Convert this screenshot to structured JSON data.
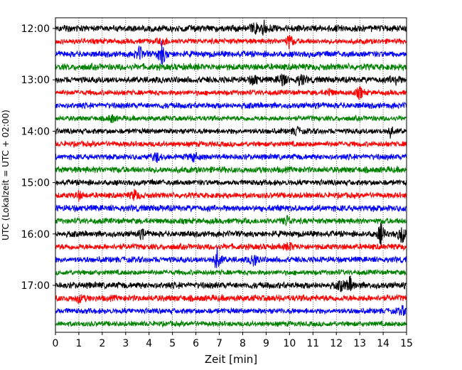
{
  "chart_data": {
    "type": "line",
    "xlabel": "Zeit  [min]",
    "ylabel": "UTC (Lokalzeit = UTC + 02:00)",
    "x_ticks": [
      "0",
      "1",
      "2",
      "3",
      "4",
      "5",
      "6",
      "7",
      "8",
      "9",
      "10",
      "11",
      "12",
      "13",
      "14",
      "15"
    ],
    "xlim": [
      0,
      15
    ],
    "y_ticks": [
      "12:00",
      "13:00",
      "14:00",
      "15:00",
      "16:00",
      "17:00"
    ],
    "grid": "vertical dotted",
    "colors": [
      "#000000",
      "#ff0000",
      "#0000ff",
      "#008000"
    ],
    "traces_per_hour": 4,
    "trace_count": 24,
    "events": [
      {
        "trace": 0,
        "minute": 8.9,
        "amplitude": 0.55
      },
      {
        "trace": 0,
        "minute": 8.5,
        "amplitude": 0.4
      },
      {
        "trace": 1,
        "minute": 4.6,
        "amplitude": 0.4
      },
      {
        "trace": 1,
        "minute": 10.0,
        "amplitude": 0.55
      },
      {
        "trace": 2,
        "minute": 3.6,
        "amplitude": 0.55
      },
      {
        "trace": 2,
        "minute": 4.55,
        "amplitude": 0.9
      },
      {
        "trace": 4,
        "minute": 8.5,
        "amplitude": 0.45
      },
      {
        "trace": 4,
        "minute": 9.7,
        "amplitude": 0.6
      },
      {
        "trace": 4,
        "minute": 10.5,
        "amplitude": 0.55
      },
      {
        "trace": 4,
        "minute": 14.5,
        "amplitude": 0.5
      },
      {
        "trace": 5,
        "minute": 13.0,
        "amplitude": 0.5
      },
      {
        "trace": 5,
        "minute": 11.7,
        "amplitude": 0.3
      },
      {
        "trace": 7,
        "minute": 2.4,
        "amplitude": 0.3
      },
      {
        "trace": 8,
        "minute": 10.3,
        "amplitude": 0.3
      },
      {
        "trace": 8,
        "minute": 14.3,
        "amplitude": 0.4
      },
      {
        "trace": 10,
        "minute": 4.3,
        "amplitude": 0.4
      },
      {
        "trace": 10,
        "minute": 5.9,
        "amplitude": 0.4
      },
      {
        "trace": 13,
        "minute": 3.4,
        "amplitude": 0.45
      },
      {
        "trace": 13,
        "minute": 1.0,
        "amplitude": 0.3
      },
      {
        "trace": 15,
        "minute": 9.9,
        "amplitude": 0.4
      },
      {
        "trace": 16,
        "minute": 13.9,
        "amplitude": 0.8
      },
      {
        "trace": 16,
        "minute": 14.8,
        "amplitude": 0.8
      },
      {
        "trace": 16,
        "minute": 3.7,
        "amplitude": 0.3
      },
      {
        "trace": 17,
        "minute": 10.0,
        "amplitude": 0.3
      },
      {
        "trace": 18,
        "minute": 6.9,
        "amplitude": 0.9
      },
      {
        "trace": 18,
        "minute": 8.5,
        "amplitude": 0.5
      },
      {
        "trace": 20,
        "minute": 12.6,
        "amplitude": 0.6
      },
      {
        "trace": 20,
        "minute": 12.2,
        "amplitude": 0.35
      },
      {
        "trace": 21,
        "minute": 1.0,
        "amplitude": 0.3
      },
      {
        "trace": 22,
        "minute": 14.8,
        "amplitude": 0.35
      }
    ]
  }
}
